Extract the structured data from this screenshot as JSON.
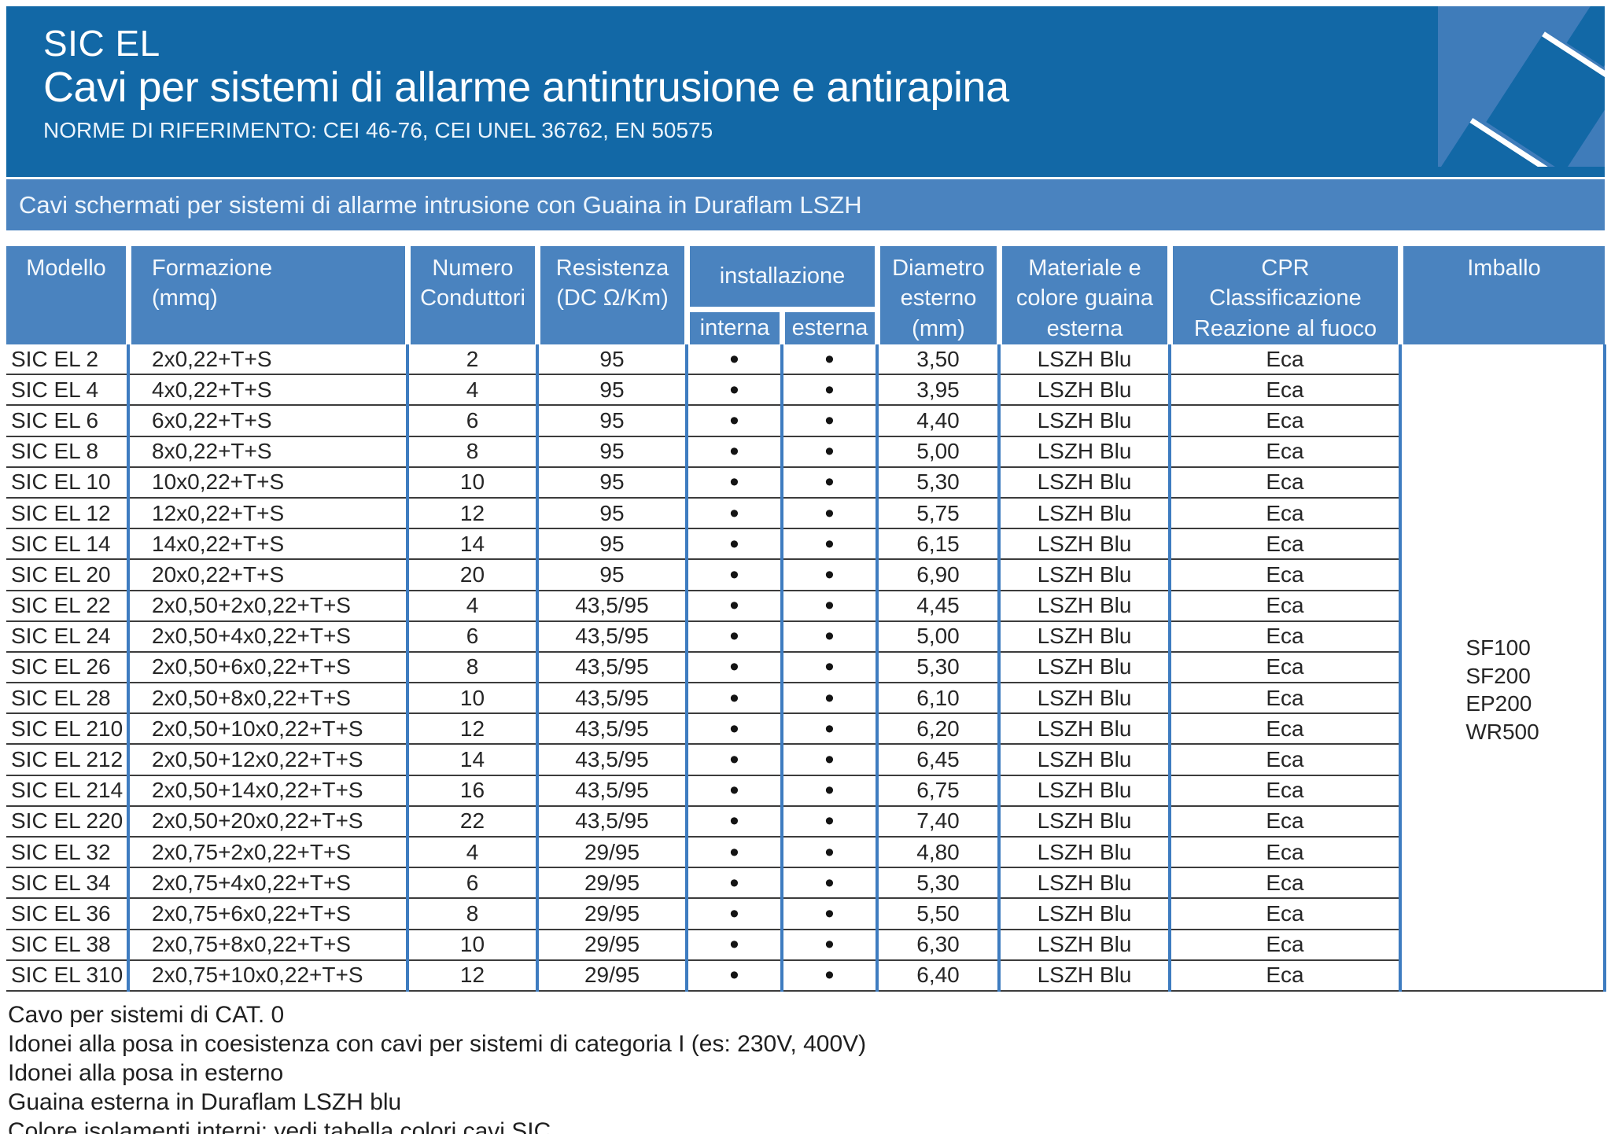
{
  "colors": {
    "header_blue": "#1268a6",
    "panel_blue": "#4a83bf",
    "grid_blue": "#3e7cc0",
    "art_blue": "#3f7cba",
    "row_line": "#3c3c3c"
  },
  "header": {
    "title": "SIC EL",
    "subtitle": "Cavi per sistemi di allarme antintrusione e antirapina",
    "norms": "NORME DI RIFERIMENTO: CEI 46-76, CEI UNEL 36762, EN 50575"
  },
  "band": "Cavi schermati per sistemi di allarme intrusione con Guaina in Duraflam LSZH",
  "table": {
    "headers": {
      "modello": "Modello",
      "formazione": "Formazione\n(mmq)",
      "numero": "Numero\nConduttori",
      "resistenza": "Resistenza\n(DC Ω/Km)",
      "installazione": "installazione",
      "interna": "interna",
      "esterna": "esterna",
      "diametro": "Diametro\nesterno\n(mm)",
      "materiale": "Materiale e\ncolore guaina\nesterna",
      "cpr": "CPR\nClassificazione\nReazione al fuoco",
      "imballo": "Imballo"
    },
    "bullet": "•",
    "rows": [
      {
        "model": "SIC EL 2",
        "formazione": "2x0,22+T+S",
        "conduttori": "2",
        "resistenza": "95",
        "diametro": "3,50",
        "materiale": "LSZH Blu",
        "cpr": "Eca"
      },
      {
        "model": "SIC EL 4",
        "formazione": "4x0,22+T+S",
        "conduttori": "4",
        "resistenza": "95",
        "diametro": "3,95",
        "materiale": "LSZH Blu",
        "cpr": "Eca"
      },
      {
        "model": "SIC EL 6",
        "formazione": "6x0,22+T+S",
        "conduttori": "6",
        "resistenza": "95",
        "diametro": "4,40",
        "materiale": "LSZH Blu",
        "cpr": "Eca"
      },
      {
        "model": "SIC EL 8",
        "formazione": "8x0,22+T+S",
        "conduttori": "8",
        "resistenza": "95",
        "diametro": "5,00",
        "materiale": "LSZH Blu",
        "cpr": "Eca"
      },
      {
        "model": "SIC EL 10",
        "formazione": "10x0,22+T+S",
        "conduttori": "10",
        "resistenza": "95",
        "diametro": "5,30",
        "materiale": "LSZH Blu",
        "cpr": "Eca"
      },
      {
        "model": "SIC EL 12",
        "formazione": "12x0,22+T+S",
        "conduttori": "12",
        "resistenza": "95",
        "diametro": "5,75",
        "materiale": "LSZH Blu",
        "cpr": "Eca"
      },
      {
        "model": "SIC EL 14",
        "formazione": "14x0,22+T+S",
        "conduttori": "14",
        "resistenza": "95",
        "diametro": "6,15",
        "materiale": "LSZH Blu",
        "cpr": "Eca"
      },
      {
        "model": "SIC EL 20",
        "formazione": "20x0,22+T+S",
        "conduttori": "20",
        "resistenza": "95",
        "diametro": "6,90",
        "materiale": "LSZH Blu",
        "cpr": "Eca"
      },
      {
        "model": "SIC EL 22",
        "formazione": "2x0,50+2x0,22+T+S",
        "conduttori": "4",
        "resistenza": "43,5/95",
        "diametro": "4,45",
        "materiale": "LSZH Blu",
        "cpr": "Eca"
      },
      {
        "model": "SIC EL 24",
        "formazione": "2x0,50+4x0,22+T+S",
        "conduttori": "6",
        "resistenza": "43,5/95",
        "diametro": "5,00",
        "materiale": "LSZH Blu",
        "cpr": "Eca"
      },
      {
        "model": "SIC EL 26",
        "formazione": "2x0,50+6x0,22+T+S",
        "conduttori": "8",
        "resistenza": "43,5/95",
        "diametro": "5,30",
        "materiale": "LSZH Blu",
        "cpr": "Eca"
      },
      {
        "model": "SIC EL 28",
        "formazione": "2x0,50+8x0,22+T+S",
        "conduttori": "10",
        "resistenza": "43,5/95",
        "diametro": "6,10",
        "materiale": "LSZH Blu",
        "cpr": "Eca"
      },
      {
        "model": "SIC EL 210",
        "formazione": "2x0,50+10x0,22+T+S",
        "conduttori": "12",
        "resistenza": "43,5/95",
        "diametro": "6,20",
        "materiale": "LSZH Blu",
        "cpr": "Eca"
      },
      {
        "model": "SIC EL 212",
        "formazione": "2x0,50+12x0,22+T+S",
        "conduttori": "14",
        "resistenza": "43,5/95",
        "diametro": "6,45",
        "materiale": "LSZH Blu",
        "cpr": "Eca"
      },
      {
        "model": "SIC EL 214",
        "formazione": "2x0,50+14x0,22+T+S",
        "conduttori": "16",
        "resistenza": "43,5/95",
        "diametro": "6,75",
        "materiale": "LSZH Blu",
        "cpr": "Eca"
      },
      {
        "model": "SIC EL 220",
        "formazione": "2x0,50+20x0,22+T+S",
        "conduttori": "22",
        "resistenza": "43,5/95",
        "diametro": "7,40",
        "materiale": "LSZH Blu",
        "cpr": "Eca"
      },
      {
        "model": "SIC EL 32",
        "formazione": "2x0,75+2x0,22+T+S",
        "conduttori": "4",
        "resistenza": "29/95",
        "diametro": "4,80",
        "materiale": "LSZH Blu",
        "cpr": "Eca"
      },
      {
        "model": "SIC EL 34",
        "formazione": "2x0,75+4x0,22+T+S",
        "conduttori": "6",
        "resistenza": "29/95",
        "diametro": "5,30",
        "materiale": "LSZH Blu",
        "cpr": "Eca"
      },
      {
        "model": "SIC EL 36",
        "formazione": "2x0,75+6x0,22+T+S",
        "conduttori": "8",
        "resistenza": "29/95",
        "diametro": "5,50",
        "materiale": "LSZH Blu",
        "cpr": "Eca"
      },
      {
        "model": "SIC EL 38",
        "formazione": "2x0,75+8x0,22+T+S",
        "conduttori": "10",
        "resistenza": "29/95",
        "diametro": "6,30",
        "materiale": "LSZH Blu",
        "cpr": "Eca"
      },
      {
        "model": "SIC EL 310",
        "formazione": "2x0,75+10x0,22+T+S",
        "conduttori": "12",
        "resistenza": "29/95",
        "diametro": "6,40",
        "materiale": "LSZH Blu",
        "cpr": "Eca"
      }
    ],
    "imballo_values": [
      "SF100",
      "SF200",
      "EP200",
      "WR500"
    ]
  },
  "notes": [
    "Cavo per sistemi di CAT. 0",
    "Idonei alla posa in coesistenza con cavi per sistemi di categoria I (es: 230V, 400V)",
    "Idonei alla posa in esterno",
    "Guaina esterna in Duraflam LSZH blu",
    "Colore isolamenti interni: vedi tabella colori cavi SIC"
  ]
}
